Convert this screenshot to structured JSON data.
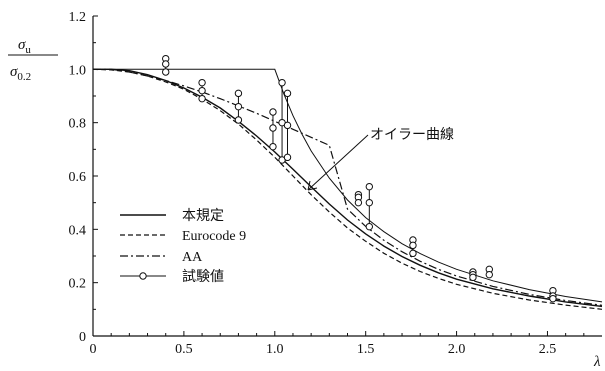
{
  "chart_data": {
    "type": "line",
    "xlabel": "λ",
    "ylabel": {
      "symbol": "σ",
      "numerator_sub": "u",
      "denominator_sub": "0.2"
    },
    "xlim": [
      0,
      2.8
    ],
    "ylim": [
      0,
      1.2
    ],
    "x_ticks": [
      0,
      0.5,
      1.0,
      1.5,
      2.0,
      2.5
    ],
    "x_tick_labels": [
      "0",
      "0.5",
      "1.0",
      "1.5",
      "2.0",
      "2.5"
    ],
    "y_ticks": [
      0,
      0.2,
      0.4,
      0.6,
      0.8,
      1.0,
      1.2
    ],
    "y_tick_labels": [
      "0",
      "0.2",
      "0.4",
      "0.6",
      "0.8",
      "1.0",
      "1.2"
    ],
    "grid": false,
    "legend_position": "bottom-left",
    "annotations": [
      {
        "text": "オイラー曲線",
        "x": 1.2,
        "y": 0.7,
        "points_to": "Euler curve"
      }
    ],
    "series": [
      {
        "name": "本規定",
        "style": "solid",
        "points": [
          [
            0,
            1.0
          ],
          [
            0.1,
            1.0
          ],
          [
            0.2,
            0.995
          ],
          [
            0.3,
            0.98
          ],
          [
            0.4,
            0.958
          ],
          [
            0.5,
            0.93
          ],
          [
            0.6,
            0.895
          ],
          [
            0.7,
            0.855
          ],
          [
            0.8,
            0.805
          ],
          [
            0.9,
            0.75
          ],
          [
            1.0,
            0.69
          ],
          [
            1.1,
            0.625
          ],
          [
            1.2,
            0.56
          ],
          [
            1.3,
            0.495
          ],
          [
            1.4,
            0.435
          ],
          [
            1.5,
            0.383
          ],
          [
            1.6,
            0.337
          ],
          [
            1.7,
            0.298
          ],
          [
            1.8,
            0.265
          ],
          [
            1.9,
            0.237
          ],
          [
            2.0,
            0.213
          ],
          [
            2.2,
            0.177
          ],
          [
            2.4,
            0.15
          ],
          [
            2.6,
            0.128
          ],
          [
            2.8,
            0.111
          ]
        ]
      },
      {
        "name": "Eurocode 9",
        "style": "dashed",
        "points": [
          [
            0,
            1.0
          ],
          [
            0.1,
            0.998
          ],
          [
            0.2,
            0.99
          ],
          [
            0.3,
            0.975
          ],
          [
            0.4,
            0.953
          ],
          [
            0.5,
            0.925
          ],
          [
            0.6,
            0.888
          ],
          [
            0.7,
            0.845
          ],
          [
            0.8,
            0.795
          ],
          [
            0.9,
            0.735
          ],
          [
            1.0,
            0.67
          ],
          [
            1.1,
            0.6
          ],
          [
            1.2,
            0.53
          ],
          [
            1.3,
            0.465
          ],
          [
            1.4,
            0.405
          ],
          [
            1.5,
            0.355
          ],
          [
            1.6,
            0.31
          ],
          [
            1.7,
            0.273
          ],
          [
            1.8,
            0.242
          ],
          [
            1.9,
            0.216
          ],
          [
            2.0,
            0.194
          ],
          [
            2.2,
            0.16
          ],
          [
            2.4,
            0.135
          ],
          [
            2.6,
            0.116
          ],
          [
            2.8,
            0.1
          ]
        ]
      },
      {
        "name": "AA",
        "style": "dash-dot",
        "points": [
          [
            0,
            1.0
          ],
          [
            0.1,
            1.0
          ],
          [
            0.2,
            0.99
          ],
          [
            0.3,
            0.975
          ],
          [
            0.4,
            0.958
          ],
          [
            0.5,
            0.938
          ],
          [
            0.6,
            0.915
          ],
          [
            0.7,
            0.89
          ],
          [
            0.8,
            0.863
          ],
          [
            0.9,
            0.835
          ],
          [
            1.0,
            0.805
          ],
          [
            1.1,
            0.775
          ],
          [
            1.2,
            0.745
          ],
          [
            1.3,
            0.715
          ],
          [
            1.4,
            0.476
          ],
          [
            1.5,
            0.411
          ],
          [
            1.6,
            0.359
          ],
          [
            1.7,
            0.316
          ],
          [
            1.8,
            0.28
          ],
          [
            1.9,
            0.25
          ],
          [
            2.0,
            0.225
          ],
          [
            2.2,
            0.186
          ],
          [
            2.4,
            0.156
          ],
          [
            2.6,
            0.133
          ],
          [
            2.8,
            0.115
          ]
        ]
      },
      {
        "name": "オイラー曲線",
        "style": "solid-thin",
        "points": [
          [
            0,
            1.0
          ],
          [
            1.0,
            1.0
          ],
          [
            1.05,
            0.907
          ],
          [
            1.1,
            0.826
          ],
          [
            1.15,
            0.756
          ],
          [
            1.2,
            0.694
          ],
          [
            1.3,
            0.592
          ],
          [
            1.4,
            0.51
          ],
          [
            1.5,
            0.444
          ],
          [
            1.6,
            0.391
          ],
          [
            1.7,
            0.346
          ],
          [
            1.8,
            0.309
          ],
          [
            1.9,
            0.277
          ],
          [
            2.0,
            0.25
          ],
          [
            2.2,
            0.207
          ],
          [
            2.4,
            0.174
          ],
          [
            2.6,
            0.148
          ],
          [
            2.8,
            0.128
          ]
        ]
      },
      {
        "name": "試験値",
        "style": "markers",
        "groups": [
          {
            "x": 0.4,
            "y": [
              1.04,
              1.02,
              0.99
            ]
          },
          {
            "x": 0.6,
            "y": [
              0.95,
              0.92,
              0.89
            ]
          },
          {
            "x": 0.8,
            "y": [
              0.91,
              0.86,
              0.81
            ]
          },
          {
            "x": 0.99,
            "y": [
              0.84,
              0.78,
              0.71
            ]
          },
          {
            "x": 1.04,
            "y": [
              0.95,
              0.8,
              0.66
            ]
          },
          {
            "x": 1.07,
            "y": [
              0.91,
              0.79,
              0.67
            ]
          },
          {
            "x": 1.46,
            "y": [
              0.53,
              0.52,
              0.5
            ]
          },
          {
            "x": 1.52,
            "y": [
              0.56,
              0.5,
              0.41
            ]
          },
          {
            "x": 1.76,
            "y": [
              0.36,
              0.34,
              0.31
            ]
          },
          {
            "x": 2.09,
            "y": [
              0.24,
              0.23,
              0.22
            ]
          },
          {
            "x": 2.18,
            "y": [
              0.25,
              0.23
            ]
          },
          {
            "x": 2.53,
            "y": [
              0.17,
              0.15,
              0.14
            ]
          }
        ]
      }
    ]
  }
}
